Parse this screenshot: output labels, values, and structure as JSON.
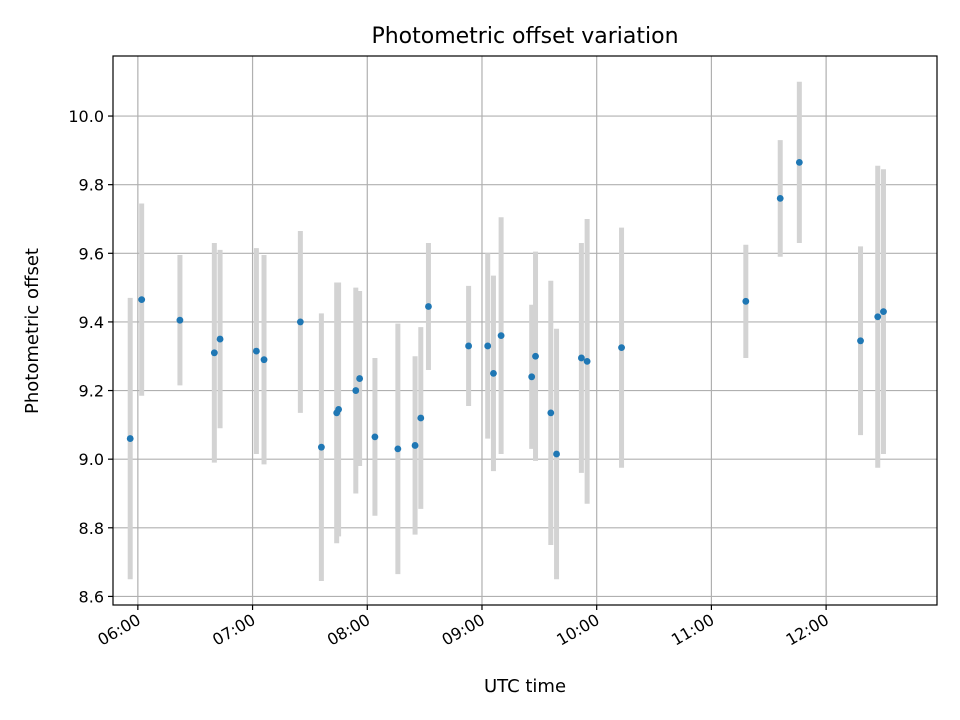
{
  "chart_data": {
    "type": "scatter",
    "title": "Photometric offset variation",
    "xlabel": "UTC time",
    "ylabel": "Photometric offset",
    "x_unit": "UTC time (HH:MM)",
    "xlim": [
      "05:47",
      "12:58"
    ],
    "ylim": [
      8.575,
      10.175
    ],
    "x_ticks": [
      "06:00",
      "07:00",
      "08:00",
      "09:00",
      "10:00",
      "11:00",
      "12:00"
    ],
    "y_ticks": [
      "8.6",
      "8.8",
      "9.0",
      "9.2",
      "9.4",
      "9.6",
      "9.8",
      "10.0"
    ],
    "grid": true,
    "marker_color": "#1f77b4",
    "errorbar_color": "#d3d3d3",
    "points": [
      {
        "t": "05:56",
        "y": 9.06,
        "err": 0.41
      },
      {
        "t": "06:02",
        "y": 9.465,
        "err": 0.28
      },
      {
        "t": "06:22",
        "y": 9.405,
        "err": 0.19
      },
      {
        "t": "06:40",
        "y": 9.31,
        "err": 0.32
      },
      {
        "t": "06:43",
        "y": 9.35,
        "err": 0.26
      },
      {
        "t": "07:02",
        "y": 9.315,
        "err": 0.3
      },
      {
        "t": "07:06",
        "y": 9.29,
        "err": 0.305
      },
      {
        "t": "07:25",
        "y": 9.4,
        "err": 0.265
      },
      {
        "t": "07:36",
        "y": 9.035,
        "err": 0.39
      },
      {
        "t": "07:44",
        "y": 9.135,
        "err": 0.38
      },
      {
        "t": "07:45",
        "y": 9.145,
        "err": 0.37
      },
      {
        "t": "07:54",
        "y": 9.2,
        "err": 0.3
      },
      {
        "t": "07:56",
        "y": 9.235,
        "err": 0.255
      },
      {
        "t": "08:04",
        "y": 9.065,
        "err": 0.23
      },
      {
        "t": "08:16",
        "y": 9.03,
        "err": 0.365
      },
      {
        "t": "08:25",
        "y": 9.04,
        "err": 0.26
      },
      {
        "t": "08:28",
        "y": 9.12,
        "err": 0.265
      },
      {
        "t": "08:32",
        "y": 9.445,
        "err": 0.185
      },
      {
        "t": "08:53",
        "y": 9.33,
        "err": 0.175
      },
      {
        "t": "09:03",
        "y": 9.33,
        "err": 0.27
      },
      {
        "t": "09:06",
        "y": 9.25,
        "err": 0.285
      },
      {
        "t": "09:10",
        "y": 9.36,
        "err": 0.345
      },
      {
        "t": "09:26",
        "y": 9.24,
        "err": 0.21
      },
      {
        "t": "09:28",
        "y": 9.3,
        "err": 0.305
      },
      {
        "t": "09:36",
        "y": 9.135,
        "err": 0.385
      },
      {
        "t": "09:39",
        "y": 9.015,
        "err": 0.365
      },
      {
        "t": "09:52",
        "y": 9.295,
        "err": 0.335
      },
      {
        "t": "09:55",
        "y": 9.285,
        "err": 0.415
      },
      {
        "t": "10:13",
        "y": 9.325,
        "err": 0.35
      },
      {
        "t": "11:18",
        "y": 9.46,
        "err": 0.165
      },
      {
        "t": "11:36",
        "y": 9.76,
        "err": 0.17
      },
      {
        "t": "11:46",
        "y": 9.865,
        "err": 0.235
      },
      {
        "t": "12:18",
        "y": 9.345,
        "err": 0.275
      },
      {
        "t": "12:27",
        "y": 9.415,
        "err": 0.44
      },
      {
        "t": "12:30",
        "y": 9.43,
        "err": 0.415
      }
    ]
  }
}
